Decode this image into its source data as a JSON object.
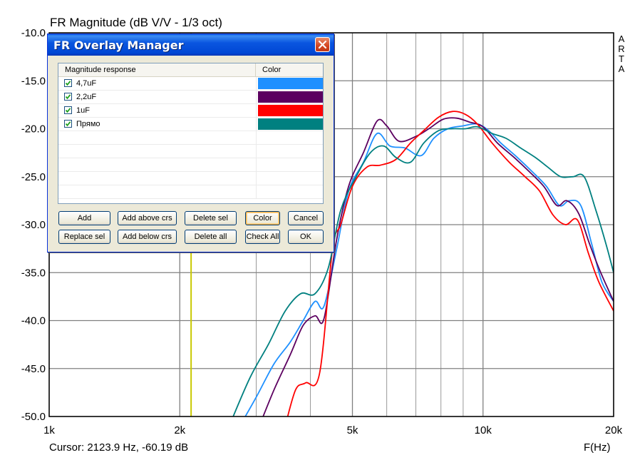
{
  "title": "FR Magnitude (dB V/V - 1/3 oct)",
  "brand_vertical": [
    "A",
    "R",
    "T",
    "A"
  ],
  "cursor_readout": "Cursor: 2123.9 Hz, -60.19 dB",
  "x_axis_unit": "F(Hz)",
  "colors": {
    "grid": "#808080",
    "cursor_line": "#c8c800",
    "dialog_title": "#0a56e0"
  },
  "dialog": {
    "title": "FR Overlay Manager",
    "close_icon": "close-icon",
    "list": {
      "headers": [
        "Magnitude response",
        "Color"
      ],
      "rows": [
        {
          "label": "4,7uF",
          "checked": true,
          "color": "#1e90ff"
        },
        {
          "label": "2,2uF",
          "checked": true,
          "color": "#5c0060"
        },
        {
          "label": "1uF",
          "checked": true,
          "color": "#ff0000"
        },
        {
          "label": "Прямо",
          "checked": true,
          "color": "#008080"
        }
      ],
      "empty_rows": 5
    },
    "buttons": {
      "add": "Add",
      "add_above": "Add above crs",
      "delete_sel": "Delete sel",
      "color": "Color",
      "cancel": "Cancel",
      "replace_sel": "Replace sel",
      "add_below": "Add below crs",
      "delete_all": "Delete all",
      "check_all": "Check All",
      "ok": "OK"
    }
  },
  "chart_data": {
    "type": "line",
    "title": "FR Magnitude (dB V/V - 1/3 oct)",
    "xlabel": "F(Hz)",
    "ylabel": "",
    "xscale": "log",
    "xlim": [
      1000,
      20000
    ],
    "ylim": [
      -50,
      -10
    ],
    "grid": true,
    "x_tick_labels": [
      "1k",
      "2k",
      "5k",
      "10k",
      "20k"
    ],
    "x_ticks": [
      1000,
      2000,
      5000,
      10000,
      20000
    ],
    "y_tick_labels": [
      "-10.0",
      "-15.0",
      "-20.0",
      "-25.0",
      "-30.0",
      "-35.0",
      "-40.0",
      "-45.0",
      "-50.0"
    ],
    "y_ticks": [
      -10,
      -15,
      -20,
      -25,
      -30,
      -35,
      -40,
      -45,
      -50
    ],
    "cursor_x": 2123.9,
    "series": [
      {
        "name": "4,7uF",
        "color": "#1e90ff",
        "x": [
          2750,
          3000,
          3300,
          3600,
          3850,
          4100,
          4300,
          4600,
          4900,
          5300,
          5700,
          6100,
          6600,
          7200,
          7700,
          8300,
          9000,
          9700,
          10300,
          11000,
          12000,
          13000,
          14000,
          15000,
          15800,
          16800,
          17800,
          18800,
          20000
        ],
        "y": [
          -51,
          -48,
          -44.5,
          -42.2,
          -40,
          -38,
          -38.5,
          -32.5,
          -26.5,
          -23.5,
          -20.5,
          -21.8,
          -22,
          -22.8,
          -21,
          -20,
          -19.7,
          -19.5,
          -20.2,
          -21.5,
          -23,
          -24.5,
          -26,
          -28,
          -27.5,
          -28,
          -32,
          -36,
          -38
        ]
      },
      {
        "name": "2,2uF",
        "color": "#5c0060",
        "x": [
          3050,
          3300,
          3600,
          3850,
          4100,
          4300,
          4600,
          4900,
          5300,
          5700,
          6000,
          6400,
          7000,
          7500,
          8100,
          8700,
          9300,
          10000,
          10800,
          11800,
          12800,
          13800,
          14800,
          15600,
          16600,
          17600,
          18600,
          20000
        ],
        "y": [
          -51,
          -47.2,
          -43.5,
          -40.5,
          -39.5,
          -39.8,
          -31.5,
          -26,
          -22.5,
          -19.2,
          -19.7,
          -21.3,
          -20.8,
          -20,
          -19,
          -18.9,
          -19.3,
          -19.8,
          -21.5,
          -23,
          -24.5,
          -26,
          -28,
          -27.5,
          -28.8,
          -32,
          -34.8,
          -38
        ]
      },
      {
        "name": "1uF",
        "color": "#ff0000",
        "x": [
          3500,
          3700,
          3900,
          4200,
          4500,
          4700,
          5000,
          5400,
          5800,
          6300,
          6800,
          7300,
          7900,
          8500,
          9100,
          9700,
          10500,
          11500,
          12500,
          13500,
          14500,
          15500,
          16500,
          17500,
          18500,
          20000
        ],
        "y": [
          -51,
          -47.2,
          -46.5,
          -45.5,
          -32.5,
          -30,
          -26,
          -24,
          -23.8,
          -23.2,
          -21.5,
          -20.2,
          -18.8,
          -18.2,
          -18.5,
          -19.5,
          -21.5,
          -23.5,
          -25,
          -26.5,
          -29,
          -30,
          -29.5,
          -33,
          -36,
          -39
        ]
      },
      {
        "name": "Прямо",
        "color": "#008080",
        "x": [
          2600,
          2900,
          3200,
          3500,
          3800,
          4100,
          4400,
          4700,
          5100,
          5500,
          5900,
          6300,
          6800,
          7300,
          7900,
          8500,
          9100,
          9700,
          10500,
          11300,
          12200,
          13200,
          14100,
          15100,
          16100,
          17100,
          18200,
          19200,
          20000
        ],
        "y": [
          -51,
          -46,
          -42.5,
          -39,
          -37.2,
          -37.2,
          -34.5,
          -28.5,
          -25,
          -22.5,
          -21.8,
          -23,
          -23.5,
          -21.5,
          -20.2,
          -20,
          -20,
          -19.8,
          -20.5,
          -21,
          -22,
          -23,
          -24,
          -25,
          -25,
          -25,
          -28.5,
          -32,
          -35
        ]
      }
    ]
  }
}
